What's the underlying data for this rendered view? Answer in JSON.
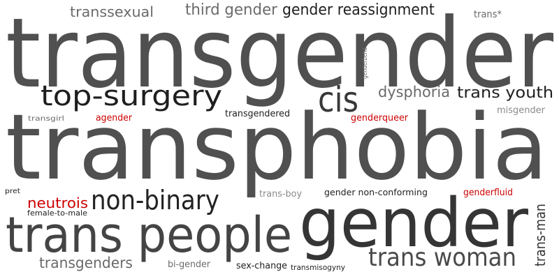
{
  "words": [
    {
      "id": "transgender",
      "text": "transgender",
      "color": "#505050"
    },
    {
      "id": "transphobia",
      "text": "transphobia",
      "color": "#505050"
    },
    {
      "id": "gender",
      "text": "gender",
      "color": "#353535"
    },
    {
      "id": "trans-people",
      "text": "trans people",
      "color": "#444444"
    },
    {
      "id": "top-surgery",
      "text": "top-surgery",
      "color": "#1e1e1e"
    },
    {
      "id": "cis",
      "text": "cis",
      "color": "#383838"
    },
    {
      "id": "non-binary",
      "text": "non-binary",
      "color": "#222222"
    },
    {
      "id": "trans-woman",
      "text": "trans woman",
      "color": "#4a4a4a"
    },
    {
      "id": "transsexual",
      "text": "transsexual",
      "color": "#6a6a6a"
    },
    {
      "id": "third-gender",
      "text": "third gender",
      "color": "#6a6a6a"
    },
    {
      "id": "gender-reassignment",
      "text": "gender reassignment",
      "color": "#1e1e1e"
    },
    {
      "id": "trans-star",
      "text": "trans*",
      "color": "#6a6a6a"
    },
    {
      "id": "dysphoria",
      "text": "dysphoria",
      "color": "#6a6a6a"
    },
    {
      "id": "trans-youth",
      "text": "trans youth",
      "color": "#1e1e1e"
    },
    {
      "id": "misgender",
      "text": "misgender",
      "color": "#8a8a8a"
    },
    {
      "id": "genderbend",
      "text": "genderbend",
      "color": "#6a6a6a"
    },
    {
      "id": "transgirl",
      "text": "transgirl",
      "color": "#6a6a6a"
    },
    {
      "id": "agender",
      "text": "agender",
      "color": "#cc0000"
    },
    {
      "id": "transgendered",
      "text": "transgendered",
      "color": "#1e1e1e"
    },
    {
      "id": "genderqueer",
      "text": "genderqueer",
      "color": "#cc0000"
    },
    {
      "id": "pret",
      "text": "pret",
      "color": "#1e1e1e"
    },
    {
      "id": "neutrois",
      "text": "neutrois",
      "color": "#cc0000"
    },
    {
      "id": "female-to-male",
      "text": "female-to-male",
      "color": "#1e1e1e"
    },
    {
      "id": "trans-boy",
      "text": "trans-boy",
      "color": "#8a8a8a"
    },
    {
      "id": "gender-non-conforming",
      "text": "gender non-conforming",
      "color": "#1e1e1e"
    },
    {
      "id": "genderfluid",
      "text": "genderfluid",
      "color": "#cc0000"
    },
    {
      "id": "trans-man",
      "text": "trans-man",
      "color": "#353535"
    },
    {
      "id": "transgenders",
      "text": "transgenders",
      "color": "#6a6a6a"
    },
    {
      "id": "bi-gender",
      "text": "bi-gender",
      "color": "#6a6a6a"
    },
    {
      "id": "sex-change",
      "text": "sex-change",
      "color": "#1e1e1e"
    },
    {
      "id": "transmisogyny",
      "text": "transmisogyny",
      "color": "#1e1e1e"
    }
  ]
}
